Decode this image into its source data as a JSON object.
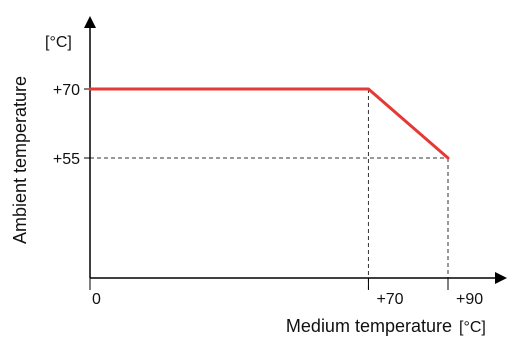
{
  "chart_data": {
    "type": "line",
    "title": "",
    "xlabel": "Medium temperature",
    "xunit": "[°C]",
    "ylabel": "Ambient temperature",
    "yunit": "[°C]",
    "xlim": [
      0,
      90
    ],
    "ylim": [
      0,
      90
    ],
    "x_ticks": [
      {
        "value": 0,
        "label": "0"
      },
      {
        "value": 70,
        "label": "+70"
      },
      {
        "value": 90,
        "label": "+90"
      }
    ],
    "y_ticks": [
      {
        "value": 70,
        "label": "+70"
      },
      {
        "value": 55,
        "label": "+55"
      }
    ],
    "series": [
      {
        "points": [
          {
            "x": 0,
            "y": 70
          },
          {
            "x": 70,
            "y": 70
          },
          {
            "x": 90,
            "y": 55
          }
        ],
        "color": "#e53935"
      }
    ],
    "grid": false,
    "reference_lines": true
  }
}
